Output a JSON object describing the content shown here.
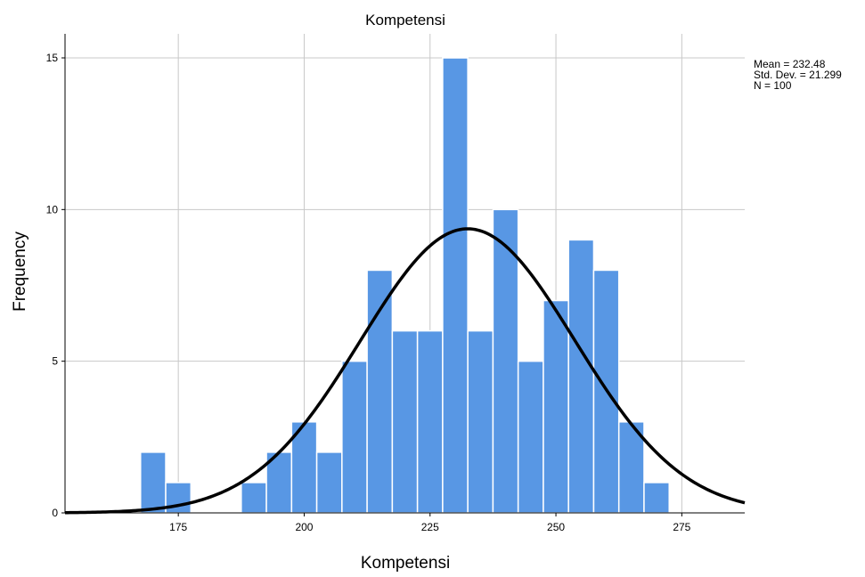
{
  "chart_data": {
    "type": "bar",
    "title": "Kompetensi",
    "xlabel": "Kompetensi",
    "ylabel": "Frequency",
    "xlim": [
      152.5,
      287.5
    ],
    "ylim": [
      0,
      16
    ],
    "xticks": [
      "175",
      "200",
      "225",
      "250",
      "275"
    ],
    "yticks": [
      "0",
      "5",
      "10",
      "15"
    ],
    "grid": true,
    "bin_width": 5,
    "bins": [
      {
        "x0": 167.5,
        "x1": 172.5,
        "count": 2
      },
      {
        "x0": 172.5,
        "x1": 177.5,
        "count": 1
      },
      {
        "x0": 187.5,
        "x1": 192.5,
        "count": 1
      },
      {
        "x0": 192.5,
        "x1": 197.5,
        "count": 2
      },
      {
        "x0": 197.5,
        "x1": 202.5,
        "count": 3
      },
      {
        "x0": 202.5,
        "x1": 207.5,
        "count": 2
      },
      {
        "x0": 207.5,
        "x1": 212.5,
        "count": 5
      },
      {
        "x0": 212.5,
        "x1": 217.5,
        "count": 8
      },
      {
        "x0": 217.5,
        "x1": 222.5,
        "count": 6
      },
      {
        "x0": 222.5,
        "x1": 227.5,
        "count": 6
      },
      {
        "x0": 227.5,
        "x1": 232.5,
        "count": 15
      },
      {
        "x0": 232.5,
        "x1": 237.5,
        "count": 6
      },
      {
        "x0": 237.5,
        "x1": 242.5,
        "count": 10
      },
      {
        "x0": 242.5,
        "x1": 247.5,
        "count": 5
      },
      {
        "x0": 247.5,
        "x1": 252.5,
        "count": 7
      },
      {
        "x0": 252.5,
        "x1": 257.5,
        "count": 9
      },
      {
        "x0": 257.5,
        "x1": 262.5,
        "count": 8
      },
      {
        "x0": 262.5,
        "x1": 267.5,
        "count": 3
      },
      {
        "x0": 267.5,
        "x1": 272.5,
        "count": 1
      }
    ],
    "normal_curve": {
      "mean": 232.48,
      "std_dev": 21.299,
      "n": 100
    },
    "bar_color": "#5897e4",
    "bar_edge_color": "#ffffff",
    "curve_color": "#000000",
    "grid_color": "#c8c8c8",
    "stats_text": {
      "mean": "Mean = 232.48",
      "std_dev": "Std. Dev. = 21.299",
      "n": "N = 100"
    }
  }
}
